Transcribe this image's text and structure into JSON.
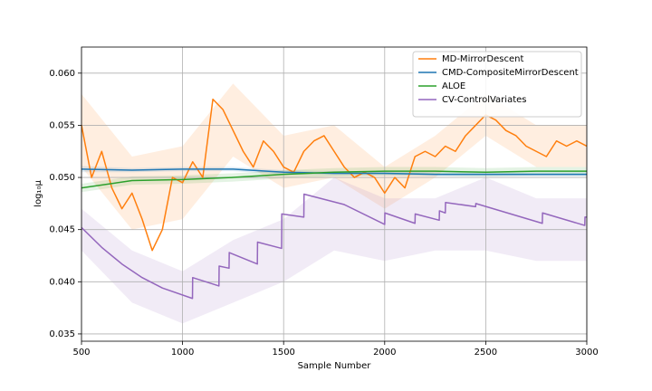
{
  "chart_data": {
    "type": "line",
    "x_label": "Sample Number",
    "y_label": "log₁₀μ",
    "xlim": [
      500,
      3000
    ],
    "xticks": [
      500,
      1000,
      1500,
      2000,
      2500,
      3000
    ],
    "ylim": [
      0.0343,
      0.0625
    ],
    "yticks": [
      0.035,
      {
        "value": 0.04,
        "label": "0.040"
      },
      0.045,
      {
        "value": 0.05,
        "label": "0.050"
      },
      0.055,
      {
        "value": 0.06,
        "label": "0.060"
      }
    ],
    "grid": true,
    "legend": "upper right",
    "band_x": [
      500,
      750,
      1000,
      1250,
      1500,
      1750,
      2000,
      2250,
      2500,
      2750,
      3000
    ],
    "series": [
      {
        "name": "MD-MirrorDescent",
        "color": "#ff7f0e",
        "x": [
          500,
          550,
          600,
          650,
          700,
          750,
          800,
          850,
          900,
          950,
          1000,
          1050,
          1100,
          1150,
          1200,
          1250,
          1300,
          1350,
          1400,
          1450,
          1500,
          1550,
          1600,
          1650,
          1700,
          1750,
          1800,
          1850,
          1900,
          1950,
          2000,
          2050,
          2100,
          2150,
          2200,
          2250,
          2300,
          2350,
          2400,
          2450,
          2500,
          2550,
          2600,
          2650,
          2700,
          2750,
          2800,
          2850,
          2900,
          2950,
          3000
        ],
        "values": [
          0.055,
          0.05,
          0.0525,
          0.049,
          0.047,
          0.0485,
          0.046,
          0.043,
          0.045,
          0.05,
          0.0495,
          0.0515,
          0.05,
          0.0575,
          0.0565,
          0.0545,
          0.0525,
          0.051,
          0.0535,
          0.0525,
          0.051,
          0.0505,
          0.0525,
          0.0535,
          0.054,
          0.0525,
          0.051,
          0.05,
          0.0505,
          0.05,
          0.0485,
          0.05,
          0.049,
          0.052,
          0.0525,
          0.052,
          0.053,
          0.0525,
          0.054,
          0.055,
          0.056,
          0.0555,
          0.0545,
          0.054,
          0.053,
          0.0525,
          0.052,
          0.0535,
          0.053,
          0.0535,
          0.053
        ],
        "band_lower": [
          0.051,
          0.045,
          0.046,
          0.052,
          0.049,
          0.05,
          0.047,
          0.05,
          0.054,
          0.051,
          0.051
        ],
        "band_upper": [
          0.058,
          0.052,
          0.053,
          0.059,
          0.054,
          0.055,
          0.051,
          0.054,
          0.058,
          0.055,
          0.055
        ]
      },
      {
        "name": "CMD-CompositeMirrorDescent",
        "color": "#1f77b4",
        "x": [
          500,
          750,
          1000,
          1250,
          1500,
          1750,
          2000,
          2250,
          2500,
          2750,
          3000
        ],
        "values": [
          0.0508,
          0.0507,
          0.0508,
          0.0508,
          0.0505,
          0.0504,
          0.0504,
          0.0503,
          0.0503,
          0.0503,
          0.0503
        ],
        "band_lower": [
          0.0505,
          0.0505,
          0.0506,
          0.0506,
          0.0503,
          0.0502,
          0.0502,
          0.0501,
          0.0501,
          0.0501,
          0.0501
        ],
        "band_upper": [
          0.0511,
          0.0509,
          0.051,
          0.051,
          0.0507,
          0.0506,
          0.0506,
          0.0505,
          0.0505,
          0.0505,
          0.0505
        ]
      },
      {
        "name": "ALOE",
        "color": "#2ca02c",
        "x": [
          500,
          750,
          1000,
          1250,
          1500,
          1750,
          2000,
          2250,
          2500,
          2750,
          3000
        ],
        "values": [
          0.049,
          0.0497,
          0.0498,
          0.05,
          0.0503,
          0.0505,
          0.0506,
          0.0506,
          0.0505,
          0.0506,
          0.0506
        ],
        "band_lower": [
          0.0486,
          0.0493,
          0.0494,
          0.0496,
          0.0499,
          0.0501,
          0.0502,
          0.0502,
          0.0501,
          0.0502,
          0.0502
        ],
        "band_upper": [
          0.0494,
          0.0501,
          0.0502,
          0.0504,
          0.0507,
          0.0509,
          0.051,
          0.051,
          0.0509,
          0.051,
          0.051
        ]
      },
      {
        "name": "CV-ControlVariates",
        "color": "#9467bd",
        "x": [
          500,
          600,
          700,
          800,
          900,
          1049,
          1050,
          1180,
          1181,
          1230,
          1231,
          1370,
          1371,
          1490,
          1491,
          1600,
          1601,
          1800,
          2000,
          2001,
          2150,
          2151,
          2270,
          2271,
          2300,
          2301,
          2450,
          2451,
          2780,
          2781,
          2990,
          2991,
          3000
        ],
        "values": [
          0.0452,
          0.0433,
          0.0417,
          0.0404,
          0.0394,
          0.0384,
          0.0404,
          0.0396,
          0.0415,
          0.0413,
          0.0428,
          0.0417,
          0.0438,
          0.0432,
          0.0465,
          0.0462,
          0.0484,
          0.0474,
          0.0455,
          0.0466,
          0.0456,
          0.0465,
          0.0459,
          0.0468,
          0.0466,
          0.0476,
          0.0472,
          0.0475,
          0.0456,
          0.0466,
          0.0454,
          0.0462,
          0.0462
        ],
        "band_lower": [
          0.043,
          0.038,
          0.036,
          0.038,
          0.04,
          0.043,
          0.042,
          0.043,
          0.043,
          0.042,
          0.042
        ],
        "band_upper": [
          0.047,
          0.043,
          0.041,
          0.044,
          0.046,
          0.05,
          0.048,
          0.048,
          0.05,
          0.048,
          0.048
        ]
      }
    ]
  }
}
